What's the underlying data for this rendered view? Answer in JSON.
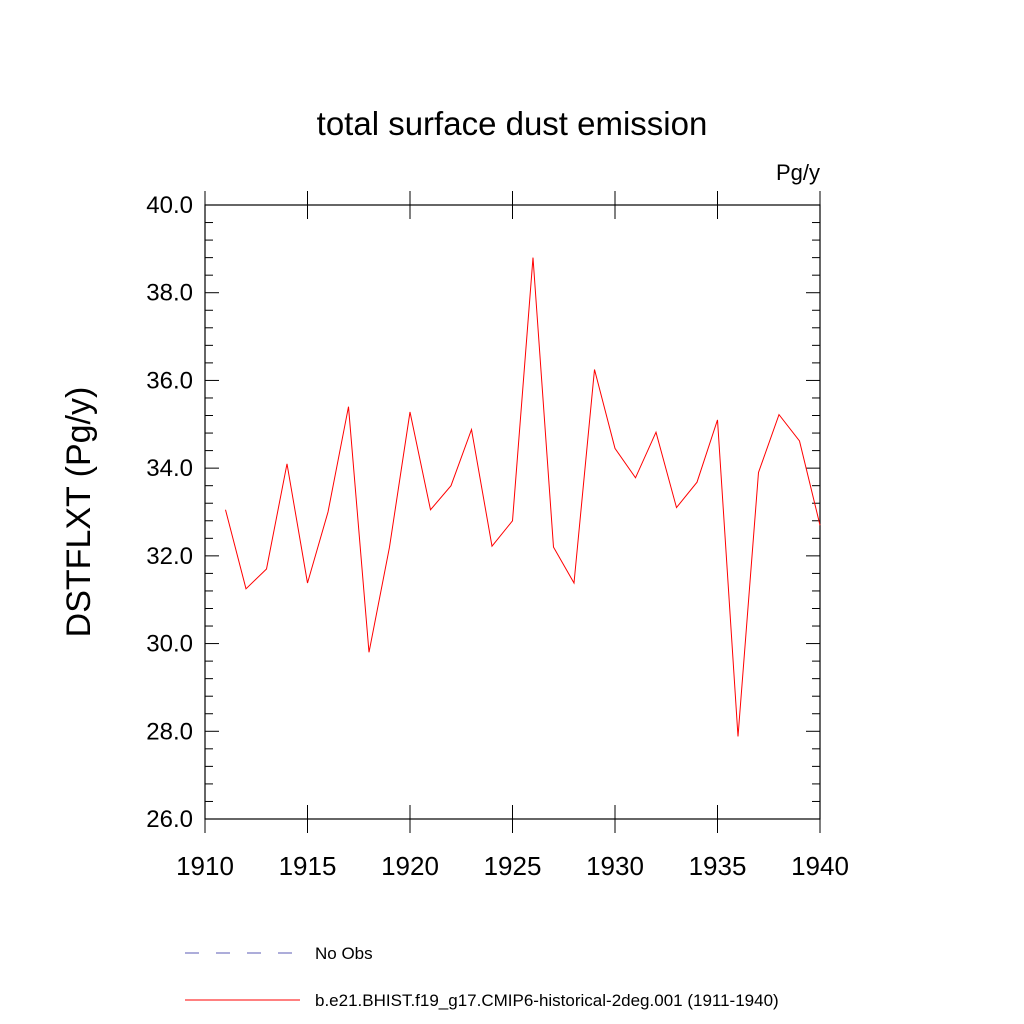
{
  "chart_data": {
    "type": "line",
    "title": "total surface dust emission",
    "units_label": "Pg/y",
    "ylabel": "DSTFLXT  (Pg/y)",
    "xlabel": "",
    "xlim": [
      1910,
      1940
    ],
    "ylim": [
      26.0,
      40.0
    ],
    "x_ticks": [
      "1910",
      "1915",
      "1920",
      "1925",
      "1930",
      "1935",
      "1940"
    ],
    "y_ticks": [
      "26.0",
      "28.0",
      "30.0",
      "32.0",
      "34.0",
      "36.0",
      "38.0",
      "40.0"
    ],
    "x_minor_step": 1,
    "y_minor_step": 0.4,
    "grid": false,
    "legend_position": "bottom",
    "series": [
      {
        "name": "No Obs",
        "color": "#5b5bb5",
        "style": "dashed",
        "x": [],
        "values": []
      },
      {
        "name": "b.e21.BHIST.f19_g17.CMIP6-historical-2deg.001 (1911-1940)",
        "color": "#ff0000",
        "style": "solid",
        "x": [
          1911,
          1912,
          1913,
          1914,
          1915,
          1916,
          1917,
          1918,
          1919,
          1920,
          1921,
          1922,
          1923,
          1924,
          1925,
          1926,
          1927,
          1928,
          1929,
          1930,
          1931,
          1932,
          1933,
          1934,
          1935,
          1936,
          1937,
          1938,
          1939,
          1940
        ],
        "values": [
          33.05,
          31.25,
          31.7,
          34.1,
          31.38,
          33.0,
          35.4,
          29.8,
          32.2,
          35.28,
          33.05,
          33.6,
          34.88,
          32.22,
          32.8,
          38.8,
          32.2,
          31.38,
          36.25,
          34.45,
          33.78,
          34.82,
          33.1,
          33.68,
          35.1,
          27.88,
          33.9,
          35.22,
          34.62,
          32.7
        ]
      }
    ]
  }
}
